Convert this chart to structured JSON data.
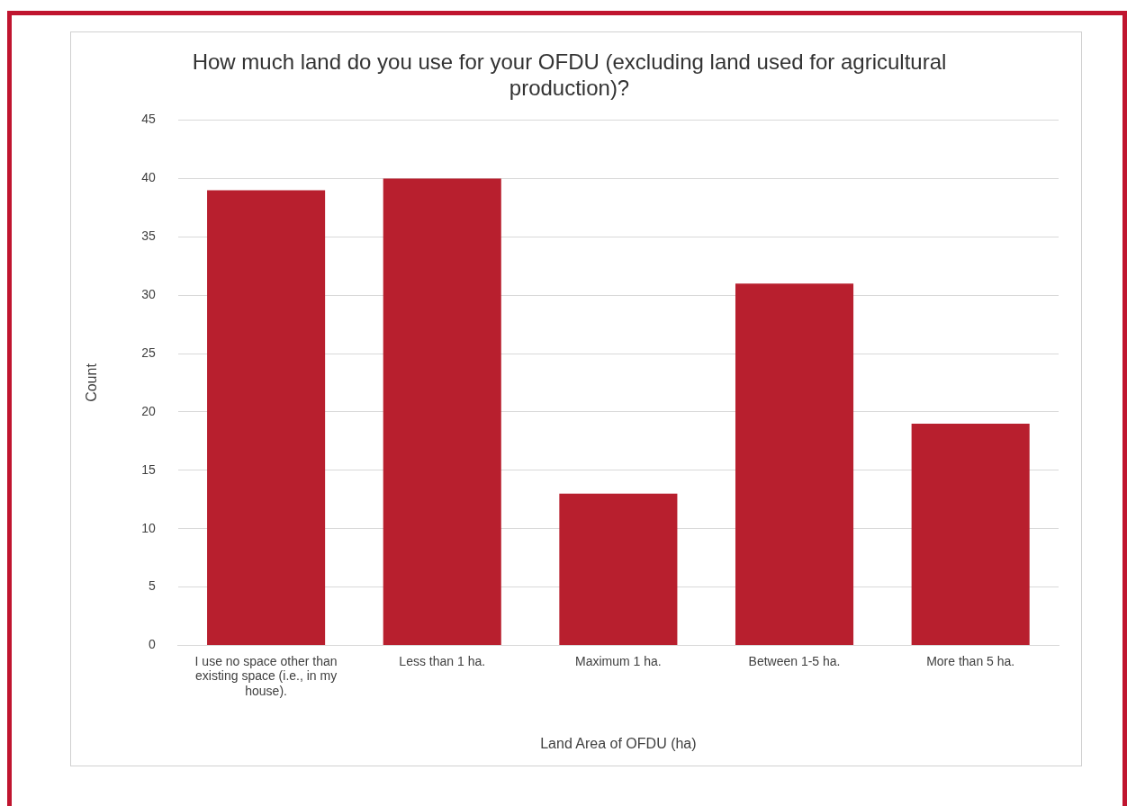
{
  "chart_data": {
    "type": "bar",
    "title": "How much land do you use for your OFDU (excluding land used for agricultural production)?",
    "xlabel": "Land Area of OFDU (ha)",
    "ylabel": "Count",
    "categories": [
      "I use no space other than existing space (i.e., in my house).",
      "Less than 1 ha.",
      "Maximum 1 ha.",
      "Between 1-5 ha.",
      "More than 5 ha."
    ],
    "values": [
      39,
      40,
      13,
      31,
      19
    ],
    "color": "#b81f2e",
    "ylim": [
      0,
      45
    ],
    "yticks": [
      0,
      5,
      10,
      15,
      20,
      25,
      30,
      35,
      40,
      45
    ],
    "grid": "y"
  }
}
